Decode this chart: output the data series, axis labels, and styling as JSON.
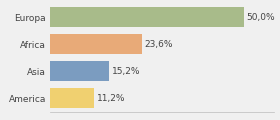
{
  "categories": [
    "Europa",
    "Africa",
    "Asia",
    "America"
  ],
  "values": [
    50.0,
    23.6,
    15.2,
    11.2
  ],
  "labels": [
    "50,0%",
    "23,6%",
    "15,2%",
    "11,2%"
  ],
  "bar_colors": [
    "#a8bb8a",
    "#e8aa78",
    "#7b9cc0",
    "#f0d070"
  ],
  "background_color": "#f0f0f0",
  "xlim": [
    0,
    58
  ],
  "label_fontsize": 6.5,
  "tick_fontsize": 6.5,
  "bar_height": 0.72
}
